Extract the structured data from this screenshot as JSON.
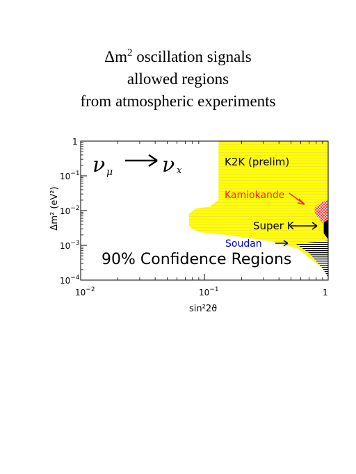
{
  "title": {
    "line1_prefix": "Δm",
    "line1_sup": "2",
    "line1_suffix": " oscillation signals",
    "line2": "allowed regions",
    "line3": "from atmospheric experiments"
  },
  "chart_data": {
    "type": "area",
    "xscale": "log",
    "yscale": "log",
    "xlim": [
      0.01,
      1
    ],
    "ylim": [
      0.0001,
      1
    ],
    "xlabel": "sin²2ϑ",
    "ylabel": "Δm² (eV²)",
    "x_ticks": [
      {
        "value": 0.01,
        "base": "10",
        "exp": "−2"
      },
      {
        "value": 0.1,
        "base": "10",
        "exp": "−1"
      },
      {
        "value": 1,
        "base": "1",
        "exp": ""
      }
    ],
    "y_ticks": [
      {
        "value": 1,
        "base": "1",
        "exp": ""
      },
      {
        "value": 0.1,
        "base": "10",
        "exp": "−1"
      },
      {
        "value": 0.01,
        "base": "10",
        "exp": "−2"
      },
      {
        "value": 0.001,
        "base": "10",
        "exp": "−3"
      },
      {
        "value": 0.0001,
        "base": "10",
        "exp": "−4"
      }
    ],
    "channel": {
      "from": "ν",
      "from_sub": "μ",
      "to": "ν",
      "to_sub": "x"
    },
    "confidence_label": "90% Confidence Regions",
    "colors": {
      "k2k": "#ffff00",
      "kamiokande": "#ff2020",
      "superk": "#000000",
      "soudan": "#0000cc"
    },
    "series": [
      {
        "name": "K2K (prelim)",
        "region": [
          [
            0.13,
            1
          ],
          [
            1,
            1
          ],
          [
            1,
            0.00016
          ],
          [
            0.57,
            0.0008
          ],
          [
            0.35,
            0.0013
          ],
          [
            0.15,
            0.002
          ],
          [
            0.09,
            0.0024
          ],
          [
            0.075,
            0.0035
          ],
          [
            0.075,
            0.008
          ],
          [
            0.085,
            0.0115
          ],
          [
            0.11,
            0.013
          ],
          [
            0.13,
            0.02
          ]
        ]
      },
      {
        "name": "Kamiokande",
        "region": [
          [
            0.78,
            0.012
          ],
          [
            0.9,
            0.018
          ],
          [
            1,
            0.02
          ],
          [
            1,
            0.004
          ],
          [
            0.9,
            0.0045
          ],
          [
            0.78,
            0.008
          ]
        ]
      },
      {
        "name": "Super K",
        "region": [
          [
            0.92,
            0.0045
          ],
          [
            1,
            0.0055
          ],
          [
            1,
            0.0015
          ],
          [
            0.92,
            0.0022
          ]
        ]
      },
      {
        "name": "Soudan",
        "region": [
          [
            0.55,
            0.0011
          ],
          [
            1,
            0.0014
          ],
          [
            1,
            0.00012
          ],
          [
            0.9,
            0.00022
          ],
          [
            0.7,
            0.0006
          ]
        ]
      }
    ]
  }
}
